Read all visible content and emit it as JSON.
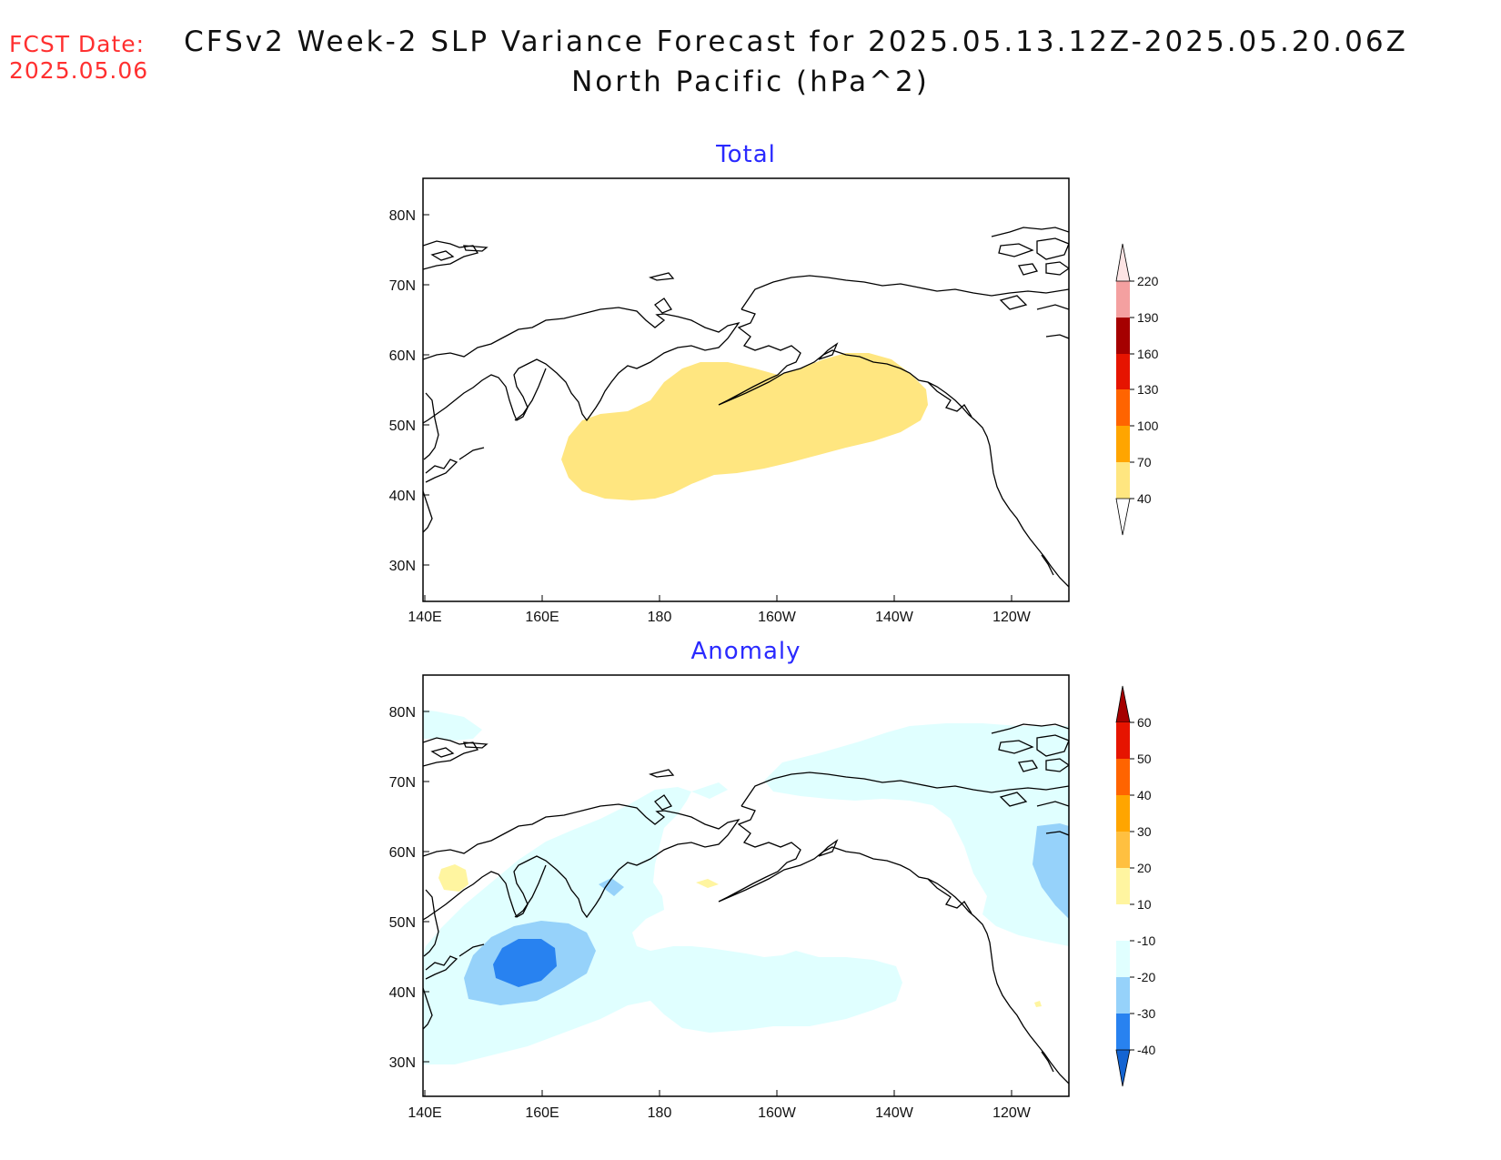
{
  "header": {
    "fcst_label": "FCST Date:",
    "fcst_date": "2025.05.06",
    "title_line1": "CFSv2 Week-2 SLP Variance Forecast for 2025.05.13.12Z-2025.05.20.06Z",
    "title_line2": "North Pacific (hPa^2)"
  },
  "panels": [
    {
      "title": "Total",
      "x_ticks": [
        "140E",
        "160E",
        "180",
        "160W",
        "140W",
        "120W"
      ],
      "y_ticks": [
        "80N",
        "70N",
        "60N",
        "50N",
        "40N",
        "30N"
      ],
      "colorbar": {
        "labels": [
          "40",
          "70",
          "100",
          "130",
          "160",
          "190",
          "220"
        ],
        "colors": [
          "#ffe680",
          "#ffa500",
          "#ff6400",
          "#e61400",
          "#a50000",
          "#f4a0a0",
          "#fde4e4"
        ]
      }
    },
    {
      "title": "Anomaly",
      "x_ticks": [
        "140E",
        "160E",
        "180",
        "160W",
        "140W",
        "120W"
      ],
      "y_ticks": [
        "80N",
        "70N",
        "60N",
        "50N",
        "40N",
        "30N"
      ],
      "colorbar": {
        "labels": [
          "60",
          "50",
          "40",
          "30",
          "20",
          "10",
          "-10",
          "-20",
          "-30",
          "-40"
        ],
        "colors": [
          "#a50000",
          "#e61400",
          "#ff6400",
          "#ffa500",
          "#ffc040",
          "#fff5a0",
          "#ffffff",
          "#e0ffff",
          "#96d2fa",
          "#2882f0",
          "#1464d2"
        ]
      }
    }
  ],
  "map_fills": {
    "total_40_70": "#ffe680",
    "anom_light_blue": "#e0ffff",
    "anom_mid_blue": "#96d2fa",
    "anom_dark_blue": "#2882f0",
    "anom_yellow": "#fff5a0"
  }
}
